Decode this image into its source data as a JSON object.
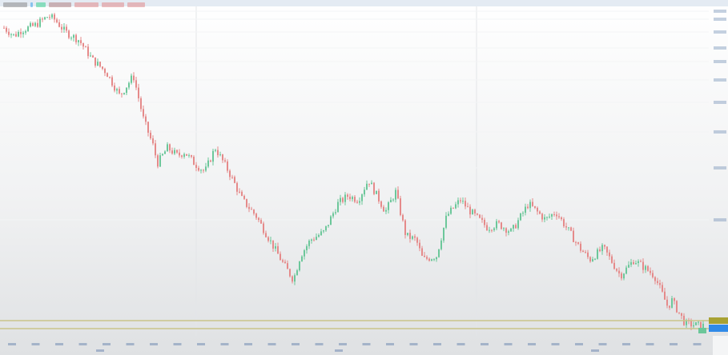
{
  "colors": {
    "up": "#6cc79a",
    "down": "#e58a8a",
    "grid": "#e3e5e8",
    "level_line": "#c9c48a",
    "level_label": "#a8a233",
    "last_price_label": "#2f8ae8",
    "axis_text": "#5a7aa8"
  },
  "legend_swatches": [
    "#8b8b8b",
    "#3aa0e8",
    "#3ad08f",
    "#b08080",
    "#e08a8a",
    "#e08a8a",
    "#e08a8a"
  ],
  "chart_data": {
    "type": "candlestick",
    "title": "",
    "xlabel": "",
    "ylabel": "",
    "y_axis_position": "right",
    "grid": true,
    "x": [
      0,
      3,
      5,
      9,
      13,
      15,
      18,
      22,
      26,
      30,
      34,
      38,
      41,
      44,
      45,
      48,
      51,
      53,
      56,
      59,
      62,
      66,
      70,
      74,
      78,
      82,
      85,
      87,
      90,
      94,
      98,
      101,
      104,
      107,
      112,
      115,
      118,
      121,
      123,
      127,
      130,
      134,
      137,
      142,
      145,
      149,
      154,
      159,
      162,
      166,
      169,
      172,
      176,
      181,
      185,
      191,
      195,
      196,
      200,
      206
    ],
    "close": [
      93.8,
      91.3,
      93,
      94.5,
      97.5,
      96.3,
      92.5,
      90,
      83.8,
      80,
      72.5,
      78.8,
      65,
      56.3,
      51.3,
      56.3,
      53.8,
      55,
      51.3,
      48.8,
      56.3,
      48.8,
      40,
      35,
      27.5,
      20,
      15,
      22.5,
      27.5,
      30,
      38.8,
      41.3,
      40,
      46.3,
      36.3,
      42.5,
      28.8,
      27.5,
      21.3,
      22.5,
      35,
      40,
      36.3,
      31.3,
      32.5,
      30,
      38.8,
      33.8,
      36.3,
      30,
      25,
      21.3,
      25,
      16.3,
      21.3,
      16.3,
      6.3,
      8.8,
      1.3,
      0.5
    ],
    "level_lines": 2
  }
}
